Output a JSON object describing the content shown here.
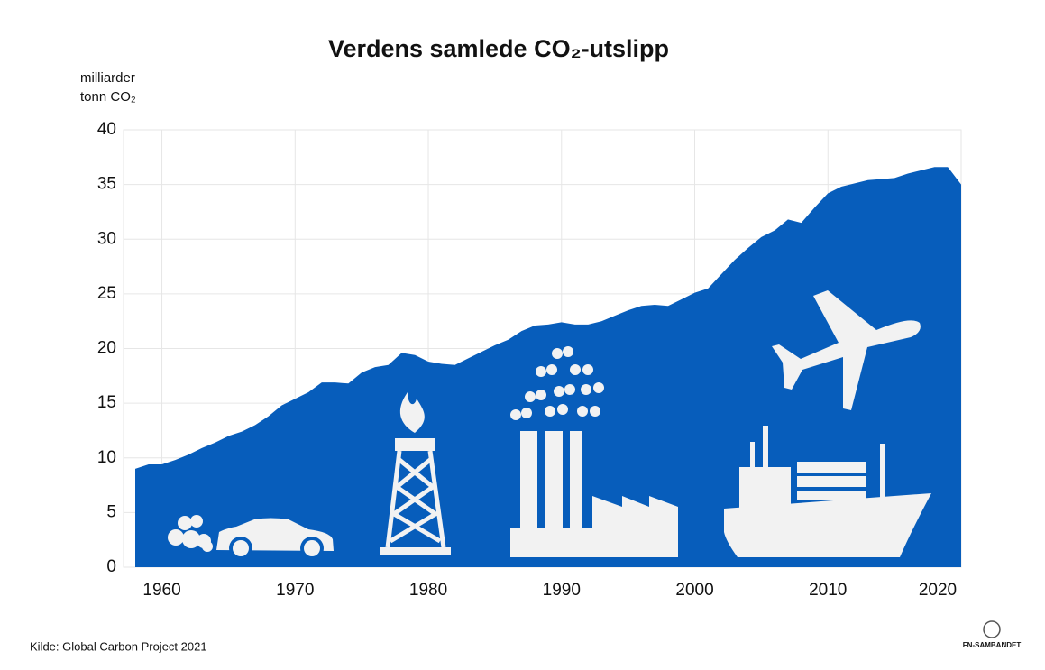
{
  "chart_data": {
    "type": "area",
    "title": "Verdens samlede CO₂-utslipp",
    "y_label": [
      "milliarder",
      "tonn CO₂"
    ],
    "source": "Kilde: Global Carbon Project 2021",
    "logo": "FN-SAMBANDET",
    "color": "#075dbb",
    "x": [
      1958,
      1959,
      1960,
      1961,
      1962,
      1963,
      1964,
      1965,
      1966,
      1967,
      1968,
      1969,
      1970,
      1971,
      1972,
      1973,
      1974,
      1975,
      1976,
      1977,
      1978,
      1979,
      1980,
      1981,
      1982,
      1983,
      1984,
      1985,
      1986,
      1987,
      1988,
      1989,
      1990,
      1991,
      1992,
      1993,
      1994,
      1995,
      1996,
      1997,
      1998,
      1999,
      2000,
      2001,
      2002,
      2003,
      2004,
      2005,
      2006,
      2007,
      2008,
      2009,
      2010,
      2011,
      2012,
      2013,
      2014,
      2015,
      2016,
      2017,
      2018,
      2019,
      2020
    ],
    "values": [
      9.0,
      9.4,
      9.4,
      9.8,
      10.3,
      10.9,
      11.4,
      12.0,
      12.4,
      13.0,
      13.8,
      14.8,
      15.4,
      16.0,
      16.9,
      16.9,
      16.8,
      17.8,
      18.3,
      18.5,
      19.6,
      19.4,
      18.8,
      18.6,
      18.5,
      19.1,
      19.7,
      20.3,
      20.8,
      21.6,
      22.1,
      22.2,
      22.4,
      22.2,
      22.2,
      22.5,
      23.0,
      23.5,
      23.9,
      24.0,
      23.9,
      24.5,
      25.1,
      25.5,
      26.8,
      28.1,
      29.2,
      30.2,
      30.8,
      31.8,
      31.5,
      32.9,
      34.2,
      34.8,
      35.1,
      35.4,
      35.5,
      35.6,
      36.0,
      36.3,
      36.6,
      36.6,
      35.0
    ],
    "xlim": [
      1958,
      2020
    ],
    "xticks": [
      1960,
      1970,
      1980,
      1990,
      2000,
      2010,
      2020
    ],
    "ylim": [
      0,
      40
    ],
    "yticks": [
      0,
      5,
      10,
      15,
      20,
      25,
      30,
      35,
      40
    ],
    "grid": true
  }
}
